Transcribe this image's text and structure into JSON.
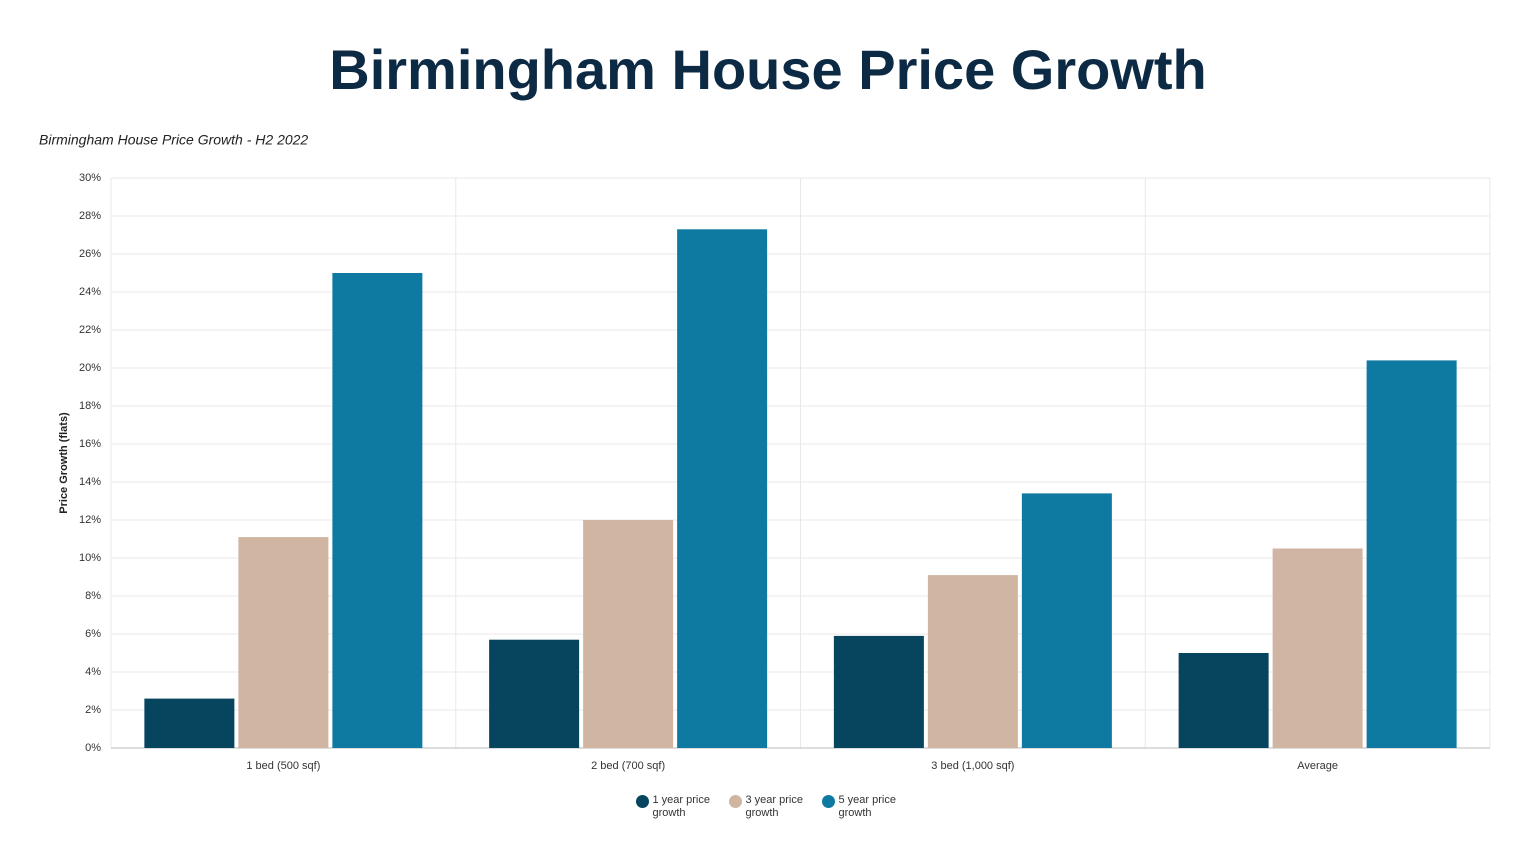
{
  "chart_data": {
    "type": "bar",
    "title": "Birmingham House Price Growth",
    "subtitle": "Birmingham House Price Growth - H2 2022",
    "y_label": "Price Growth (flats)",
    "categories": [
      "1 bed (500 sqf)",
      "2 bed (700 sqf)",
      "3 bed (1,000 sqf)",
      "Average"
    ],
    "series": [
      {
        "name": "1 year price growth",
        "color": "#07455f",
        "values": [
          2.6,
          5.7,
          5.9,
          5.0
        ]
      },
      {
        "name": "3 year price growth",
        "color": "#d0b5a3",
        "values": [
          11.1,
          12.0,
          9.1,
          10.5
        ]
      },
      {
        "name": "5 year price growth",
        "color": "#0e7aa2",
        "values": [
          25.0,
          27.3,
          13.4,
          20.4
        ]
      }
    ],
    "ylim": [
      0,
      30
    ],
    "yticks": [
      {
        "value": 0,
        "label": "0%"
      },
      {
        "value": 2,
        "label": "2%"
      },
      {
        "value": 4,
        "label": "4%"
      },
      {
        "value": 6,
        "label": "6%"
      },
      {
        "value": 8,
        "label": "8%"
      },
      {
        "value": 10,
        "label": "10%"
      },
      {
        "value": 12,
        "label": "12%"
      },
      {
        "value": 14,
        "label": "14%"
      },
      {
        "value": 16,
        "label": "16%"
      },
      {
        "value": 18,
        "label": "18%"
      },
      {
        "value": 20,
        "label": "20%"
      },
      {
        "value": 22,
        "label": "22%"
      },
      {
        "value": 24,
        "label": "24%"
      },
      {
        "value": 26,
        "label": "26%"
      },
      {
        "value": 28,
        "label": "28%"
      },
      {
        "value": 30,
        "label": "30%"
      }
    ],
    "grid": true
  }
}
